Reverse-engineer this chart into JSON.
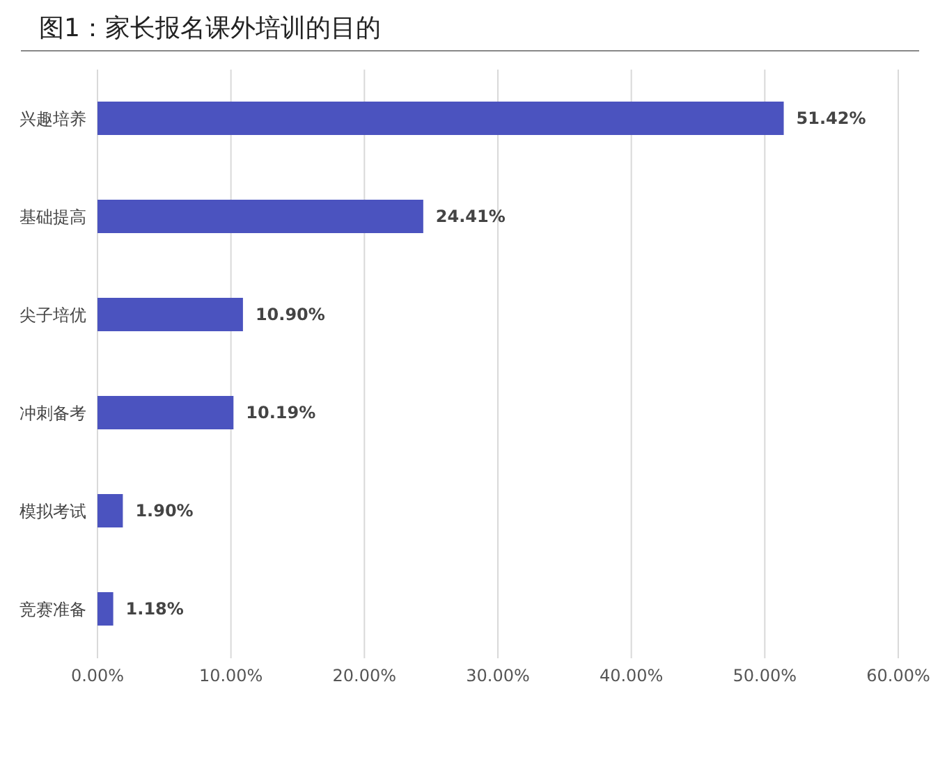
{
  "chart_data": {
    "type": "bar",
    "orientation": "horizontal",
    "title": "图1：家长报名课外培训的目的",
    "categories": [
      "兴趣培养",
      "基础提高",
      "尖子培优",
      "冲刺备考",
      "模拟考试",
      "竞赛准备"
    ],
    "values": [
      51.42,
      24.41,
      10.9,
      10.19,
      1.9,
      1.18
    ],
    "color": "#4b53bf",
    "xlim": [
      0,
      60
    ],
    "xticks": [
      {
        "value": 0,
        "label": "0.00%"
      },
      {
        "value": 10,
        "label": "10.00%"
      },
      {
        "value": 20,
        "label": "20.00%"
      },
      {
        "value": 30,
        "label": "30.00%"
      },
      {
        "value": 40,
        "label": "40.00%"
      },
      {
        "value": 50,
        "label": "50.00%"
      },
      {
        "value": 60,
        "label": "60.00%"
      }
    ],
    "grid": "x",
    "value_labels": [
      "51.42%",
      "24.41%",
      "10.90%",
      "10.19%",
      "1.90%",
      "1.18%"
    ]
  }
}
